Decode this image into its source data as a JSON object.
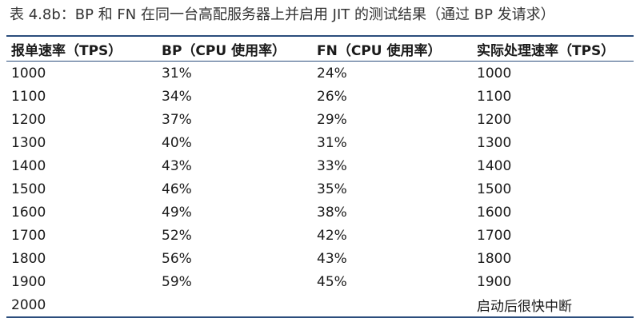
{
  "caption": "表 4.8b：BP 和 FN 在同一台高配服务器上并启用 JIT 的测试结果（通过 BP 发请求）",
  "headers": [
    "报单速率（TPS）",
    "BP（CPU 使用率）",
    "FN（CPU 使用率）",
    "实际处理速率（TPS）"
  ],
  "rows": [
    [
      "1000",
      "31%",
      "24%",
      "1000"
    ],
    [
      "1100",
      "34%",
      "26%",
      "1100"
    ],
    [
      "1200",
      "37%",
      "29%",
      "1200"
    ],
    [
      "1300",
      "40%",
      "31%",
      "1300"
    ],
    [
      "1400",
      "43%",
      "33%",
      "1400"
    ],
    [
      "1500",
      "46%",
      "35%",
      "1500"
    ],
    [
      "1600",
      "49%",
      "38%",
      "1600"
    ],
    [
      "1700",
      "52%",
      "42%",
      "1700"
    ],
    [
      "1800",
      "56%",
      "43%",
      "1800"
    ],
    [
      "1900",
      "59%",
      "45%",
      "1900"
    ],
    [
      "2000",
      "",
      "",
      "启动后很快中断"
    ]
  ],
  "colors": {
    "rule": "#2b4d7c",
    "text": "#1a1a1a"
  }
}
